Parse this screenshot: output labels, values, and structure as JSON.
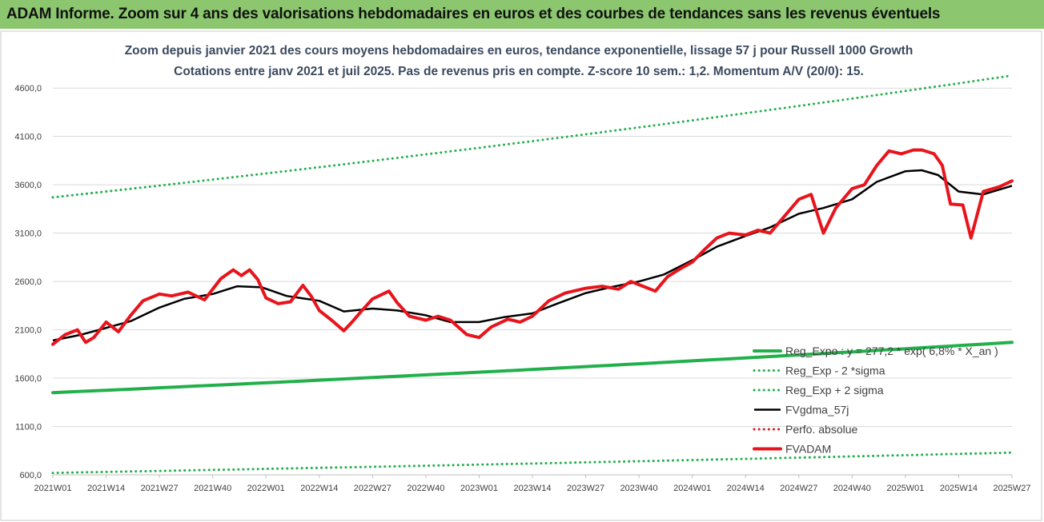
{
  "header": {
    "banner_title": "ADAM Informe. Zoom sur 4 ans des valorisations hebdomadaires en euros et des courbes de tendances sans les revenus éventuels"
  },
  "colors": {
    "banner_bg": "#8cc76f",
    "regression": "#22b04b",
    "smoothing": "#000000",
    "price": "#e8141c",
    "perf": "#e8141c",
    "title_text": "#3b4a5f"
  },
  "chart_data": {
    "type": "line",
    "title": "Zoom depuis janvier 2021 des cours moyens hebdomadaires en euros, tendance exponentielle, lissage 57 j pour Russell 1000 Growth",
    "subtitle": "Cotations entre janv 2021 et juil 2025. Pas de revenus pris en compte. Z-score 10 sem.: 1,2. Momentum A/V (20/0): 15.",
    "xlabel": "",
    "ylabel": "",
    "ylim": [
      600,
      4800
    ],
    "y_ticks": [
      "600,0",
      "1100,0",
      "1600,0",
      "2100,0",
      "2600,0",
      "3100,0",
      "3600,0",
      "4100,0",
      "4600,0"
    ],
    "x_tick_labels": [
      "2021W01",
      "2021W14",
      "2021W27",
      "2021W40",
      "2022W01",
      "2022W14",
      "2022W27",
      "2022W40",
      "2023W01",
      "2023W14",
      "2023W27",
      "2023W40",
      "2024W01",
      "2024W14",
      "2024W27",
      "2024W40",
      "2025W01",
      "2025W14",
      "2025W27"
    ],
    "grid": "horizontal",
    "legend_position": "bottom-right",
    "series": [
      {
        "name": "Reg_Expo : y = 277,2 * exp( 6,8% * X_an )",
        "style": "solid-thick",
        "color": "#22b04b",
        "x": [
          "2021W01",
          "2025W27"
        ],
        "y": [
          1450,
          1970
        ]
      },
      {
        "name": "Reg_Exp - 2 *sigma",
        "style": "dotted",
        "color": "#22b04b",
        "x": [
          "2021W01",
          "2025W27"
        ],
        "y": [
          620,
          830
        ]
      },
      {
        "name": "Reg_Exp + 2 sigma",
        "style": "dotted",
        "color": "#22b04b",
        "x": [
          "2021W01",
          "2025W27"
        ],
        "y": [
          3470,
          4730
        ]
      },
      {
        "name": "FVgdma_57j",
        "style": "solid",
        "color": "#000000",
        "x": [
          "2021W01",
          "2021W08",
          "2021W14",
          "2021W20",
          "2021W27",
          "2021W33",
          "2021W40",
          "2021W46",
          "2021W52",
          "2022W06",
          "2022W14",
          "2022W20",
          "2022W27",
          "2022W33",
          "2022W40",
          "2022W46",
          "2023W01",
          "2023W07",
          "2023W14",
          "2023W20",
          "2023W27",
          "2023W33",
          "2023W40",
          "2023W46",
          "2024W01",
          "2024W07",
          "2024W14",
          "2024W20",
          "2024W27",
          "2024W33",
          "2024W40",
          "2024W46",
          "2025W01",
          "2025W05",
          "2025W09",
          "2025W14",
          "2025W20",
          "2025W27"
        ],
        "y": [
          1990,
          2050,
          2120,
          2190,
          2330,
          2420,
          2470,
          2550,
          2540,
          2450,
          2400,
          2290,
          2320,
          2300,
          2250,
          2180,
          2180,
          2230,
          2270,
          2370,
          2480,
          2540,
          2600,
          2670,
          2820,
          2960,
          3070,
          3160,
          3300,
          3360,
          3450,
          3630,
          3740,
          3750,
          3700,
          3530,
          3500,
          3590
        ]
      },
      {
        "name": "Perfo. absolue",
        "style": "dotted",
        "color": "#e8141c",
        "x": [],
        "y": []
      },
      {
        "name": "FVADAM",
        "style": "solid-thick",
        "color": "#e8141c",
        "x": [
          "2021W01",
          "2021W04",
          "2021W07",
          "2021W09",
          "2021W11",
          "2021W14",
          "2021W17",
          "2021W20",
          "2021W23",
          "2021W27",
          "2021W30",
          "2021W34",
          "2021W38",
          "2021W42",
          "2021W45",
          "2021W47",
          "2021W49",
          "2021W51",
          "2022W01",
          "2022W04",
          "2022W07",
          "2022W10",
          "2022W12",
          "2022W14",
          "2022W17",
          "2022W20",
          "2022W22",
          "2022W24",
          "2022W27",
          "2022W31",
          "2022W33",
          "2022W36",
          "2022W40",
          "2022W43",
          "2022W46",
          "2022W50",
          "2023W01",
          "2023W04",
          "2023W08",
          "2023W11",
          "2023W14",
          "2023W18",
          "2023W22",
          "2023W27",
          "2023W31",
          "2023W35",
          "2023W38",
          "2023W41",
          "2023W44",
          "2023W47",
          "2023W50",
          "2024W01",
          "2024W04",
          "2024W07",
          "2024W10",
          "2024W14",
          "2024W17",
          "2024W20",
          "2024W24",
          "2024W27",
          "2024W30",
          "2024W33",
          "2024W36",
          "2024W40",
          "2024W43",
          "2024W46",
          "2024W49",
          "2024W52",
          "2025W03",
          "2025W05",
          "2025W08",
          "2025W10",
          "2025W12",
          "2025W15",
          "2025W17",
          "2025W20",
          "2025W24",
          "2025W27"
        ],
        "y": [
          1950,
          2050,
          2100,
          1970,
          2020,
          2180,
          2080,
          2250,
          2400,
          2470,
          2450,
          2490,
          2410,
          2630,
          2720,
          2660,
          2720,
          2620,
          2430,
          2370,
          2390,
          2560,
          2450,
          2300,
          2200,
          2090,
          2180,
          2280,
          2420,
          2500,
          2380,
          2240,
          2200,
          2240,
          2200,
          2050,
          2020,
          2130,
          2210,
          2180,
          2240,
          2400,
          2480,
          2530,
          2550,
          2520,
          2600,
          2550,
          2500,
          2650,
          2730,
          2800,
          2930,
          3050,
          3100,
          3080,
          3130,
          3100,
          3300,
          3450,
          3500,
          3100,
          3360,
          3560,
          3600,
          3800,
          3950,
          3920,
          3960,
          3960,
          3920,
          3800,
          3400,
          3390,
          3050,
          3530,
          3580,
          3640
        ]
      }
    ]
  }
}
